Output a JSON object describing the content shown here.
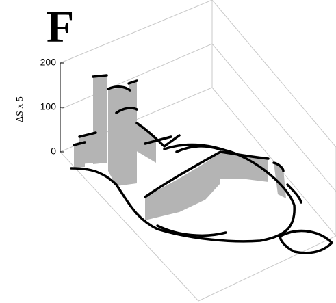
{
  "panel_label": "F",
  "chart_data": {
    "type": "3d",
    "zlabel": "ΔS x 5",
    "zlim": [
      0,
      200
    ],
    "zticks": [
      0,
      100,
      200
    ]
  }
}
